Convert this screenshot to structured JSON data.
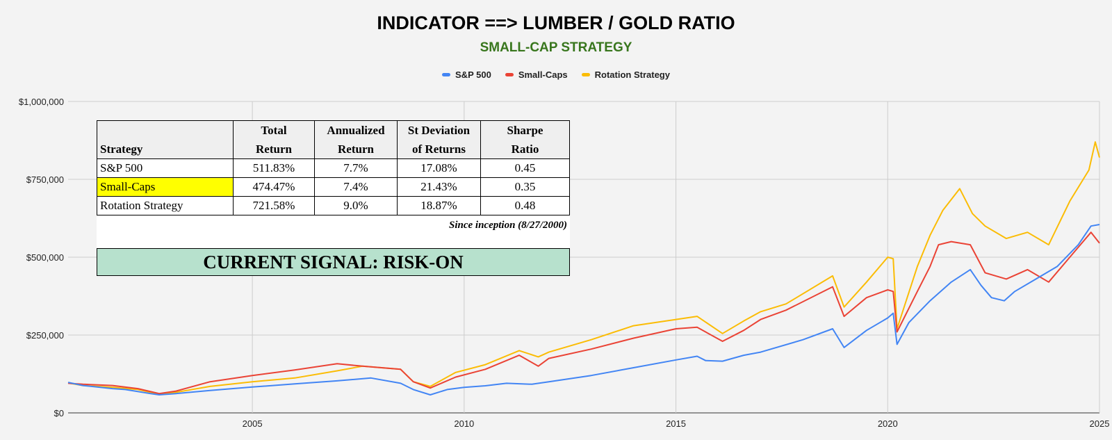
{
  "colors": {
    "sp500": "#4285f4",
    "smallcaps": "#ea4335",
    "rotation": "#fbbc04",
    "subtitle": "#38761d",
    "signal_bg": "#b7e1cd",
    "highlight": "#ffff00"
  },
  "table": {
    "headers": [
      [
        "Strategy"
      ],
      [
        "Total",
        "Return"
      ],
      [
        "Annualized",
        "Return"
      ],
      [
        "St Deviation",
        "of Returns"
      ],
      [
        "Sharpe",
        "Ratio"
      ]
    ],
    "rows": [
      {
        "strategy": "S&P 500",
        "total_return": "511.83%",
        "annualized_return": "7.7%",
        "st_deviation": "17.08%",
        "sharpe_ratio": "0.45",
        "highlight": false
      },
      {
        "strategy": "Small-Caps",
        "total_return": "474.47%",
        "annualized_return": "7.4%",
        "st_deviation": "21.43%",
        "sharpe_ratio": "0.35",
        "highlight": true
      },
      {
        "strategy": "Rotation Strategy",
        "total_return": "721.58%",
        "annualized_return": "9.0%",
        "st_deviation": "18.87%",
        "sharpe_ratio": "0.48",
        "highlight": false
      }
    ],
    "note": "Since inception (8/27/2000)",
    "signal": "CURRENT SIGNAL: RISK-ON"
  },
  "chart_data": {
    "type": "line",
    "title": "INDICATOR ==> LUMBER / GOLD RATIO",
    "subtitle": "SMALL-CAP STRATEGY",
    "legend_position": "top-center",
    "grid": true,
    "xlim": [
      2000.65,
      2025.0
    ],
    "ylim": [
      0,
      1000000
    ],
    "x_ticks": [
      2005,
      2010,
      2015,
      2020,
      2025
    ],
    "x_tick_labels": [
      "2005",
      "2010",
      "2015",
      "2020",
      "2025"
    ],
    "y_ticks": [
      0,
      250000,
      500000,
      750000,
      1000000
    ],
    "y_tick_labels": [
      "$0",
      "$250,000",
      "$500,000",
      "$750,000",
      "$1,000,000"
    ],
    "series": [
      {
        "name": "S&P 500",
        "x": [
          2000.65,
          2001.0,
          2001.7,
          2002.0,
          2002.6,
          2002.8,
          2003.2,
          2004.0,
          2005.0,
          2006.0,
          2007.0,
          2007.8,
          2008.5,
          2008.8,
          2009.2,
          2009.6,
          2010.0,
          2010.5,
          2011.0,
          2011.6,
          2012.0,
          2013.0,
          2014.0,
          2015.0,
          2015.5,
          2015.7,
          2016.1,
          2016.6,
          2017.0,
          2018.0,
          2018.7,
          2018.97,
          2019.5,
          2020.0,
          2020.13,
          2020.22,
          2020.5,
          2021.0,
          2021.5,
          2021.95,
          2022.2,
          2022.45,
          2022.75,
          2023.0,
          2023.5,
          2024.0,
          2024.5,
          2024.8,
          2025.0
        ],
        "values": [
          98000,
          88000,
          78000,
          75000,
          62000,
          58000,
          62000,
          72000,
          83000,
          93000,
          103000,
          112000,
          95000,
          75000,
          58000,
          75000,
          82000,
          87000,
          95000,
          92000,
          100000,
          120000,
          145000,
          170000,
          182000,
          168000,
          166000,
          185000,
          195000,
          235000,
          270000,
          210000,
          265000,
          305000,
          320000,
          220000,
          290000,
          360000,
          420000,
          460000,
          410000,
          370000,
          360000,
          390000,
          430000,
          470000,
          540000,
          600000,
          605000
        ]
      },
      {
        "name": "Small-Caps",
        "x": [
          2000.65,
          2001.0,
          2001.7,
          2002.3,
          2002.8,
          2003.2,
          2004.0,
          2005.0,
          2006.0,
          2007.0,
          2007.6,
          2008.5,
          2008.8,
          2009.2,
          2009.8,
          2010.5,
          2011.3,
          2011.75,
          2012.0,
          2013.0,
          2014.0,
          2015.0,
          2015.5,
          2016.1,
          2016.6,
          2017.0,
          2017.6,
          2018.7,
          2018.97,
          2019.5,
          2020.0,
          2020.13,
          2020.22,
          2020.7,
          2021.0,
          2021.2,
          2021.5,
          2021.95,
          2022.3,
          2022.8,
          2023.3,
          2023.8,
          2024.3,
          2024.8,
          2025.0
        ],
        "values": [
          95000,
          92000,
          88000,
          78000,
          62000,
          70000,
          100000,
          120000,
          138000,
          158000,
          150000,
          140000,
          100000,
          80000,
          115000,
          140000,
          185000,
          150000,
          175000,
          205000,
          240000,
          270000,
          275000,
          230000,
          265000,
          300000,
          330000,
          405000,
          310000,
          370000,
          395000,
          390000,
          260000,
          390000,
          470000,
          540000,
          550000,
          540000,
          450000,
          430000,
          460000,
          420000,
          500000,
          580000,
          545000
        ]
      },
      {
        "name": "Rotation Strategy",
        "x": [
          2000.65,
          2001.0,
          2001.7,
          2002.3,
          2002.8,
          2003.2,
          2004.0,
          2005.0,
          2006.0,
          2007.0,
          2007.6,
          2008.5,
          2008.8,
          2009.2,
          2009.8,
          2010.5,
          2011.3,
          2011.75,
          2012.0,
          2013.0,
          2014.0,
          2015.0,
          2015.5,
          2016.1,
          2016.6,
          2017.0,
          2017.6,
          2018.7,
          2018.97,
          2019.5,
          2020.0,
          2020.13,
          2020.22,
          2020.7,
          2021.0,
          2021.3,
          2021.7,
          2022.0,
          2022.3,
          2022.8,
          2023.3,
          2023.8,
          2024.3,
          2024.75,
          2024.9,
          2025.0
        ],
        "values": [
          96000,
          88000,
          82000,
          75000,
          60000,
          66000,
          85000,
          100000,
          112000,
          135000,
          150000,
          140000,
          100000,
          85000,
          130000,
          155000,
          200000,
          180000,
          195000,
          235000,
          280000,
          300000,
          310000,
          255000,
          295000,
          325000,
          350000,
          440000,
          340000,
          420000,
          500000,
          495000,
          270000,
          470000,
          570000,
          650000,
          720000,
          640000,
          600000,
          560000,
          580000,
          540000,
          680000,
          780000,
          870000,
          820000
        ]
      }
    ]
  }
}
